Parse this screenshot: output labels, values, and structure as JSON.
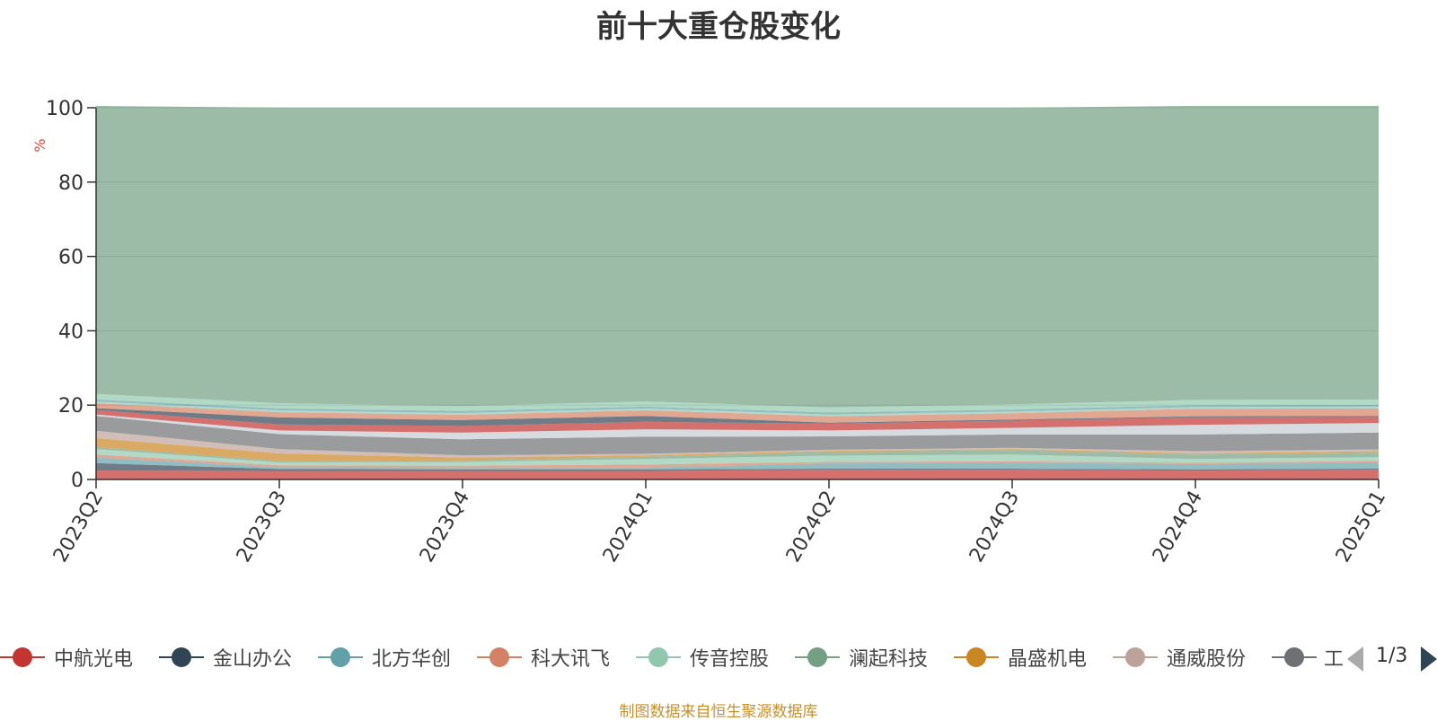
{
  "chart_data": {
    "type": "area",
    "stacked": true,
    "title": "前十大重仓股变化",
    "ylabel": "%",
    "ylim": [
      0,
      100
    ],
    "yticks": [
      0,
      20,
      40,
      60,
      80,
      100
    ],
    "grid": true,
    "legend_position": "bottom",
    "x": [
      "2023Q2",
      "2023Q3",
      "2023Q4",
      "2024Q1",
      "2024Q2",
      "2024Q3",
      "2024Q4",
      "2025Q1"
    ],
    "series": [
      {
        "name": "中航光电",
        "color": "#c23531",
        "values": [
          2.4,
          2.3,
          2.3,
          2.3,
          2.6,
          2.6,
          2.4,
          2.6
        ]
      },
      {
        "name": "金山办公",
        "color": "#2f4554",
        "values": [
          2.0,
          0.5,
          0.4,
          0.4,
          0.3,
          0.3,
          0.3,
          0.3
        ]
      },
      {
        "name": "北方华创",
        "color": "#61a0a8",
        "values": [
          1.5,
          0.5,
          0.5,
          0.5,
          1.4,
          1.6,
          1.4,
          1.6
        ]
      },
      {
        "name": "科大讯飞",
        "color": "#d48265",
        "values": [
          0.8,
          0.5,
          0.5,
          0.8,
          0.4,
          0.4,
          0.4,
          0.5
        ]
      },
      {
        "name": "传音控股",
        "color": "#91c7ae",
        "values": [
          1.5,
          0.8,
          1.0,
          1.5,
          1.7,
          1.8,
          1.0,
          1.0
        ]
      },
      {
        "name": "澜起科技",
        "color": "#749f83",
        "values": [
          0.5,
          0.4,
          0.4,
          0.6,
          1.0,
          1.2,
          1.2,
          1.2
        ]
      },
      {
        "name": "晶盛机电",
        "color": "#ca8622",
        "values": [
          2.4,
          2.0,
          0.8,
          0.4,
          0.3,
          0.3,
          0.3,
          0.4
        ]
      },
      {
        "name": "通威股份",
        "color": "#bda29a",
        "values": [
          2.0,
          1.2,
          0.6,
          0.4,
          0.3,
          0.3,
          0.6,
          0.5
        ]
      },
      {
        "name": "",
        "color": "#6e7074",
        "values": [
          4.0,
          4.0,
          4.3,
          4.6,
          3.6,
          3.6,
          4.5,
          4.5
        ]
      },
      {
        "name": "",
        "color": "#c4ccd3",
        "values": [
          0.4,
          1.0,
          1.8,
          2.0,
          1.6,
          1.8,
          2.6,
          2.6
        ]
      },
      {
        "name": "",
        "color": "#c23531",
        "values": [
          1.2,
          1.6,
          1.8,
          2.0,
          1.8,
          1.9,
          2.0,
          1.6
        ]
      },
      {
        "name": "",
        "color": "#2f4554",
        "values": [
          0.5,
          1.9,
          1.6,
          1.6,
          0.3,
          0.3,
          0.3,
          0.3
        ]
      },
      {
        "name": "",
        "color": "#d48265",
        "values": [
          1.3,
          1.4,
          1.4,
          1.5,
          1.7,
          1.7,
          2.0,
          2.0
        ]
      },
      {
        "name": "",
        "color": "#91c7ae",
        "values": [
          0.5,
          0.5,
          0.5,
          0.5,
          0.5,
          0.5,
          0.5,
          0.5
        ]
      },
      {
        "name": "",
        "color": "#61a0a8",
        "values": [
          0.5,
          0.5,
          0.5,
          0.5,
          0.5,
          0.5,
          0.5,
          0.5
        ]
      },
      {
        "name": "",
        "color": "#91c7ae",
        "values": [
          1.5,
          1.4,
          1.3,
          1.4,
          1.4,
          1.4,
          1.4,
          1.4
        ]
      },
      {
        "name": "",
        "color": "#749f83",
        "values": [
          77.5,
          79.5,
          80.3,
          79.0,
          80.6,
          79.8,
          79.1,
          79.0
        ]
      }
    ]
  },
  "legend": {
    "items": [
      {
        "label": "中航光电",
        "color": "#c23531"
      },
      {
        "label": "金山办公",
        "color": "#2f4554"
      },
      {
        "label": "北方华创",
        "color": "#61a0a8"
      },
      {
        "label": "科大讯飞",
        "color": "#d48265"
      },
      {
        "label": "传音控股",
        "color": "#91c7ae"
      },
      {
        "label": "澜起科技",
        "color": "#749f83"
      },
      {
        "label": "晶盛机电",
        "color": "#ca8622"
      },
      {
        "label": "通威股份",
        "color": "#bda29a"
      },
      {
        "label": "工",
        "color": "#6e7074"
      }
    ],
    "pager": "1/3"
  },
  "footer": "制图数据来自恒生聚源数据库"
}
